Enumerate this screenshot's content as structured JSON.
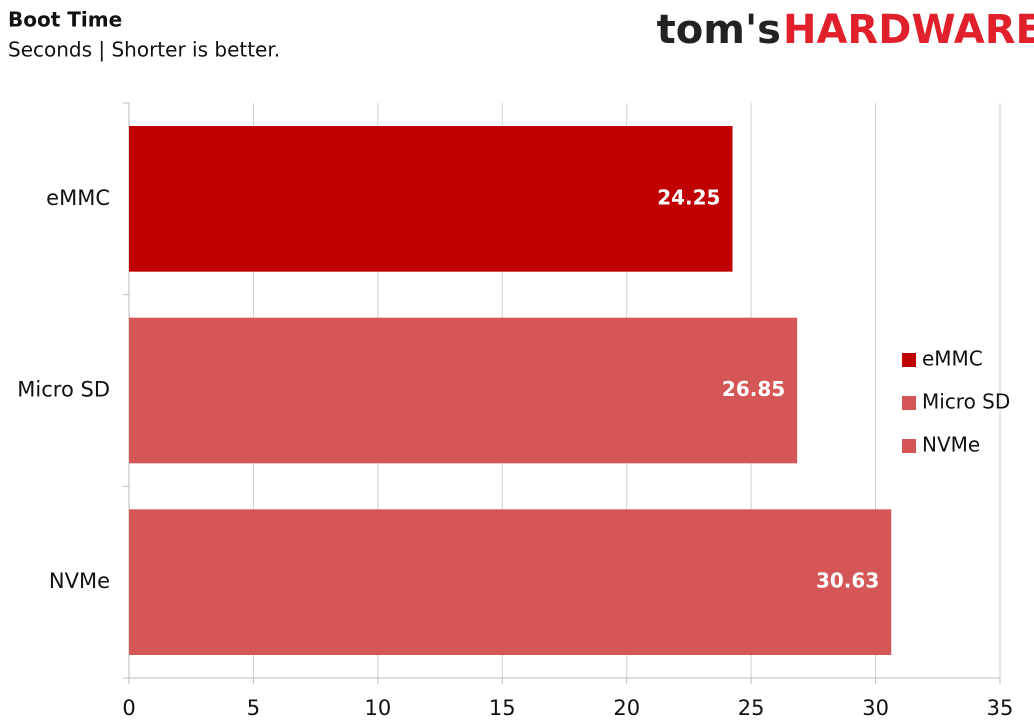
{
  "logo": {
    "left": "tom's",
    "right": "HARDWARE"
  },
  "chart_data": {
    "type": "bar",
    "orientation": "horizontal",
    "title": "Boot Time",
    "subtitle": "Seconds | Shorter is better.",
    "categories": [
      "eMMC",
      "Micro SD",
      "NVMe"
    ],
    "values": [
      24.25,
      26.85,
      30.63
    ],
    "colors": [
      "#c00000",
      "#d55656",
      "#d55656"
    ],
    "xlim": [
      0,
      35
    ],
    "xticks": [
      0,
      5,
      10,
      15,
      20,
      25,
      30,
      35
    ],
    "grid": true,
    "legend": "right"
  }
}
